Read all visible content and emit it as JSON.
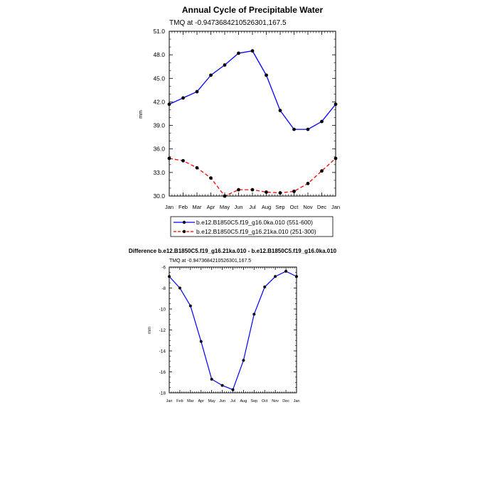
{
  "chart_data": [
    {
      "type": "line",
      "title": "Annual Cycle of Precipitable Water",
      "subtitle": "TMQ at -0.9473684210526301,167.5",
      "ylabel": "mm",
      "xlabel": "",
      "categories": [
        "Jan",
        "Feb",
        "Mar",
        "Apr",
        "May",
        "Jun",
        "Jul",
        "Aug",
        "Sep",
        "Oct",
        "Nov",
        "Dec",
        "Jan"
      ],
      "ylim": [
        30.0,
        51.0
      ],
      "yticks": [
        "30.0",
        "33.0",
        "36.0",
        "39.0",
        "42.0",
        "45.0",
        "48.0",
        "51.0"
      ],
      "grid": false,
      "legend_placement": "below",
      "series": [
        {
          "name": "b.e12.B1850C5.f19_g16.0ka.010 (551-600)",
          "color": "#0000ff",
          "dash": "solid",
          "values": [
            41.7,
            42.5,
            43.3,
            45.4,
            46.7,
            48.2,
            48.5,
            45.4,
            40.9,
            38.5,
            38.5,
            39.5,
            41.7
          ]
        },
        {
          "name": "b.e12.B1850C5.f19_g16.21ka.010 (251-300)",
          "color": "#ff0000",
          "dash": "dashed",
          "values": [
            34.8,
            34.5,
            33.6,
            32.3,
            30.0,
            30.8,
            30.8,
            30.5,
            30.4,
            30.6,
            31.6,
            33.2,
            34.8
          ]
        }
      ]
    },
    {
      "type": "line",
      "title": "Difference b.e12.B1850C5.f19_g16.21ka.010 - b.e12.B1850C5.f19_g16.0ka.010",
      "subtitle": "TMQ at -0.9473684210526301,167.5",
      "ylabel": "mm",
      "xlabel": "",
      "categories": [
        "Jan",
        "Feb",
        "Mar",
        "Apr",
        "May",
        "Jun",
        "Jul",
        "Aug",
        "Sep",
        "Oct",
        "Nov",
        "Dec",
        "Jan"
      ],
      "ylim": [
        -18,
        -6
      ],
      "yticks": [
        "-18",
        "-16",
        "-14",
        "-12",
        "-10",
        "-8",
        "-6"
      ],
      "grid": false,
      "series": [
        {
          "color": "#0000ff",
          "dash": "solid",
          "values": [
            -6.9,
            -8.0,
            -9.7,
            -13.1,
            -16.7,
            -17.3,
            -17.7,
            -14.9,
            -10.5,
            -7.9,
            -6.9,
            -6.4,
            -6.9
          ]
        }
      ]
    }
  ]
}
